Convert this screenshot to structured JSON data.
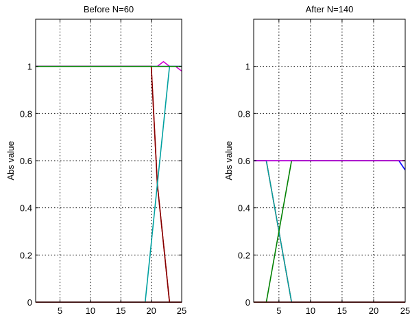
{
  "chart_data": [
    {
      "type": "line",
      "title": "Before N=60",
      "xlabel": "",
      "ylabel": "Abs value",
      "xlim": [
        1,
        25
      ],
      "ylim": [
        0,
        1.2
      ],
      "grid": true,
      "x_ticks": [
        5,
        10,
        15,
        20,
        25
      ],
      "y_ticks": [
        0,
        0.2,
        0.4,
        0.6,
        0.8,
        1
      ],
      "x_tick_labels": [
        "5",
        "10",
        "15",
        "20",
        "25"
      ],
      "y_tick_labels": [
        "0",
        "0.2",
        "0.4",
        "0.6",
        "0.8",
        "1"
      ],
      "x": [
        1,
        2,
        3,
        4,
        5,
        6,
        7,
        8,
        9,
        10,
        11,
        12,
        13,
        14,
        15,
        16,
        17,
        18,
        19,
        20,
        21,
        22,
        23,
        24,
        25
      ],
      "series": [
        {
          "color": "#ff0000",
          "values": [
            1.0,
            1.0,
            1.0,
            1.0,
            1.0,
            1.0,
            1.0,
            1.0,
            1.0,
            1.0,
            1.0,
            1.0,
            1.0,
            1.0,
            1.0,
            1.0,
            1.0,
            1.0,
            1.0,
            1.0,
            0.5,
            0.25,
            0.0,
            0.0,
            0.0
          ]
        },
        {
          "color": "#800000",
          "values": [
            1.0,
            1.0,
            1.0,
            1.0,
            1.0,
            1.0,
            1.0,
            1.0,
            1.0,
            1.0,
            1.0,
            1.0,
            1.0,
            1.0,
            1.0,
            1.0,
            1.0,
            1.0,
            1.0,
            1.0,
            0.5,
            0.25,
            0.0,
            0.0,
            0.0
          ]
        },
        {
          "color": "#00a0a0",
          "values": [
            0.0,
            0.0,
            0.0,
            0.0,
            0.0,
            0.0,
            0.0,
            0.0,
            0.0,
            0.0,
            0.0,
            0.0,
            0.0,
            0.0,
            0.0,
            0.0,
            0.0,
            0.0,
            0.0,
            0.25,
            0.5,
            0.75,
            1.0,
            1.0,
            1.0
          ]
        },
        {
          "color": "#d000d0",
          "values": [
            1.0,
            1.0,
            1.0,
            1.0,
            1.0,
            1.0,
            1.0,
            1.0,
            1.0,
            1.0,
            1.0,
            1.0,
            1.0,
            1.0,
            1.0,
            1.0,
            1.0,
            1.0,
            1.0,
            1.0,
            1.0,
            1.02,
            1.0,
            1.0,
            0.98
          ]
        },
        {
          "color": "#0000ff",
          "values": [
            1.0,
            1.0,
            1.0,
            1.0,
            1.0,
            1.0,
            1.0,
            1.0,
            1.0,
            1.0,
            1.0,
            1.0,
            1.0,
            1.0,
            1.0,
            1.0,
            1.0,
            1.0,
            1.0,
            1.0,
            1.0,
            1.0,
            1.0,
            1.0,
            1.0
          ]
        },
        {
          "color": "#008000",
          "values": [
            1.0,
            1.0,
            1.0,
            1.0,
            1.0,
            1.0,
            1.0,
            1.0,
            1.0,
            1.0,
            1.0,
            1.0,
            1.0,
            1.0,
            1.0,
            1.0,
            1.0,
            1.0,
            1.0,
            1.0,
            1.0,
            1.0,
            1.0,
            1.0,
            1.0
          ]
        },
        {
          "color": "#0000ff",
          "values": [
            0.0,
            0.0,
            0.0,
            0.0,
            0.0,
            0.0,
            0.0,
            0.0,
            0.0,
            0.0,
            0.0,
            0.0,
            0.0,
            0.0,
            0.0,
            0.0,
            0.0,
            0.0,
            0.0,
            0.0,
            0.0,
            0.0,
            0.0,
            0.0,
            0.0
          ]
        },
        {
          "color": "#008000",
          "values": [
            0.0,
            0.0,
            0.0,
            0.0,
            0.0,
            0.0,
            0.0,
            0.0,
            0.0,
            0.0,
            0.0,
            0.0,
            0.0,
            0.0,
            0.0,
            0.0,
            0.0,
            0.0,
            0.0,
            0.0,
            0.0,
            0.0,
            0.0,
            0.0,
            0.0
          ]
        },
        {
          "color": "#ff0000",
          "values": [
            0.0,
            0.0,
            0.0,
            0.0,
            0.0,
            0.0,
            0.0,
            0.0,
            0.0,
            0.0,
            0.0,
            0.0,
            0.0,
            0.0,
            0.0,
            0.0,
            0.0,
            0.0,
            0.0,
            0.0,
            0.0,
            0.0,
            0.0,
            0.0,
            0.0
          ]
        }
      ]
    },
    {
      "type": "line",
      "title": "After N=140",
      "xlabel": "",
      "ylabel": "Abs value",
      "xlim": [
        1,
        25
      ],
      "ylim": [
        0,
        1.2
      ],
      "grid": true,
      "x_ticks": [
        5,
        10,
        15,
        20,
        25
      ],
      "y_ticks": [
        0,
        0.2,
        0.4,
        0.6,
        0.8,
        1
      ],
      "x_tick_labels": [
        "5",
        "10",
        "15",
        "20",
        "25"
      ],
      "y_tick_labels": [
        "0",
        "0.2",
        "0.4",
        "0.6",
        "0.8",
        "1"
      ],
      "x": [
        1,
        2,
        3,
        4,
        5,
        6,
        7,
        8,
        9,
        10,
        11,
        12,
        13,
        14,
        15,
        16,
        17,
        18,
        19,
        20,
        21,
        22,
        23,
        24,
        25
      ],
      "series": [
        {
          "color": "#ff0000",
          "values": [
            0.6,
            0.6,
            0.6,
            0.45,
            0.3,
            0.15,
            0.0,
            0.0,
            0.0,
            0.0,
            0.0,
            0.0,
            0.0,
            0.0,
            0.0,
            0.0,
            0.0,
            0.0,
            0.0,
            0.0,
            0.0,
            0.0,
            0.0,
            0.0,
            0.0
          ]
        },
        {
          "color": "#00a0a0",
          "values": [
            0.6,
            0.6,
            0.6,
            0.45,
            0.3,
            0.15,
            0.0,
            0.0,
            0.0,
            0.0,
            0.0,
            0.0,
            0.0,
            0.0,
            0.0,
            0.0,
            0.0,
            0.0,
            0.0,
            0.0,
            0.0,
            0.0,
            0.0,
            0.0,
            0.0
          ]
        },
        {
          "color": "#008000",
          "values": [
            0.0,
            0.0,
            0.0,
            0.15,
            0.3,
            0.45,
            0.6,
            0.6,
            0.6,
            0.6,
            0.6,
            0.6,
            0.6,
            0.6,
            0.6,
            0.6,
            0.6,
            0.6,
            0.6,
            0.6,
            0.6,
            0.6,
            0.6,
            0.6,
            0.6
          ]
        },
        {
          "color": "#0000ff",
          "values": [
            0.6,
            0.6,
            0.6,
            0.6,
            0.6,
            0.6,
            0.6,
            0.6,
            0.6,
            0.6,
            0.6,
            0.6,
            0.6,
            0.6,
            0.6,
            0.6,
            0.6,
            0.6,
            0.6,
            0.6,
            0.6,
            0.6,
            0.6,
            0.6,
            0.56
          ]
        },
        {
          "color": "#d000d0",
          "values": [
            0.6,
            0.6,
            0.6,
            0.6,
            0.6,
            0.6,
            0.6,
            0.6,
            0.6,
            0.6,
            0.6,
            0.6,
            0.6,
            0.6,
            0.6,
            0.6,
            0.6,
            0.6,
            0.6,
            0.6,
            0.6,
            0.6,
            0.6,
            0.6,
            0.6
          ]
        },
        {
          "color": "#0000ff",
          "values": [
            0.0,
            0.0,
            0.0,
            0.0,
            0.0,
            0.0,
            0.0,
            0.0,
            0.0,
            0.0,
            0.0,
            0.0,
            0.0,
            0.0,
            0.0,
            0.0,
            0.0,
            0.0,
            0.0,
            0.0,
            0.0,
            0.0,
            0.0,
            0.0,
            0.0
          ]
        },
        {
          "color": "#008000",
          "values": [
            0.0,
            0.0,
            0.0,
            0.0,
            0.0,
            0.0,
            0.0,
            0.0,
            0.0,
            0.0,
            0.0,
            0.0,
            0.0,
            0.0,
            0.0,
            0.0,
            0.0,
            0.0,
            0.0,
            0.0,
            0.0,
            0.0,
            0.0,
            0.0,
            0.0
          ]
        },
        {
          "color": "#ff0000",
          "values": [
            0.0,
            0.0,
            0.0,
            0.0,
            0.0,
            0.0,
            0.0,
            0.0,
            0.0,
            0.0,
            0.0,
            0.0,
            0.0,
            0.0,
            0.0,
            0.0,
            0.0,
            0.0,
            0.0,
            0.0,
            0.0,
            0.0,
            0.0,
            0.0,
            0.0
          ]
        }
      ]
    }
  ]
}
